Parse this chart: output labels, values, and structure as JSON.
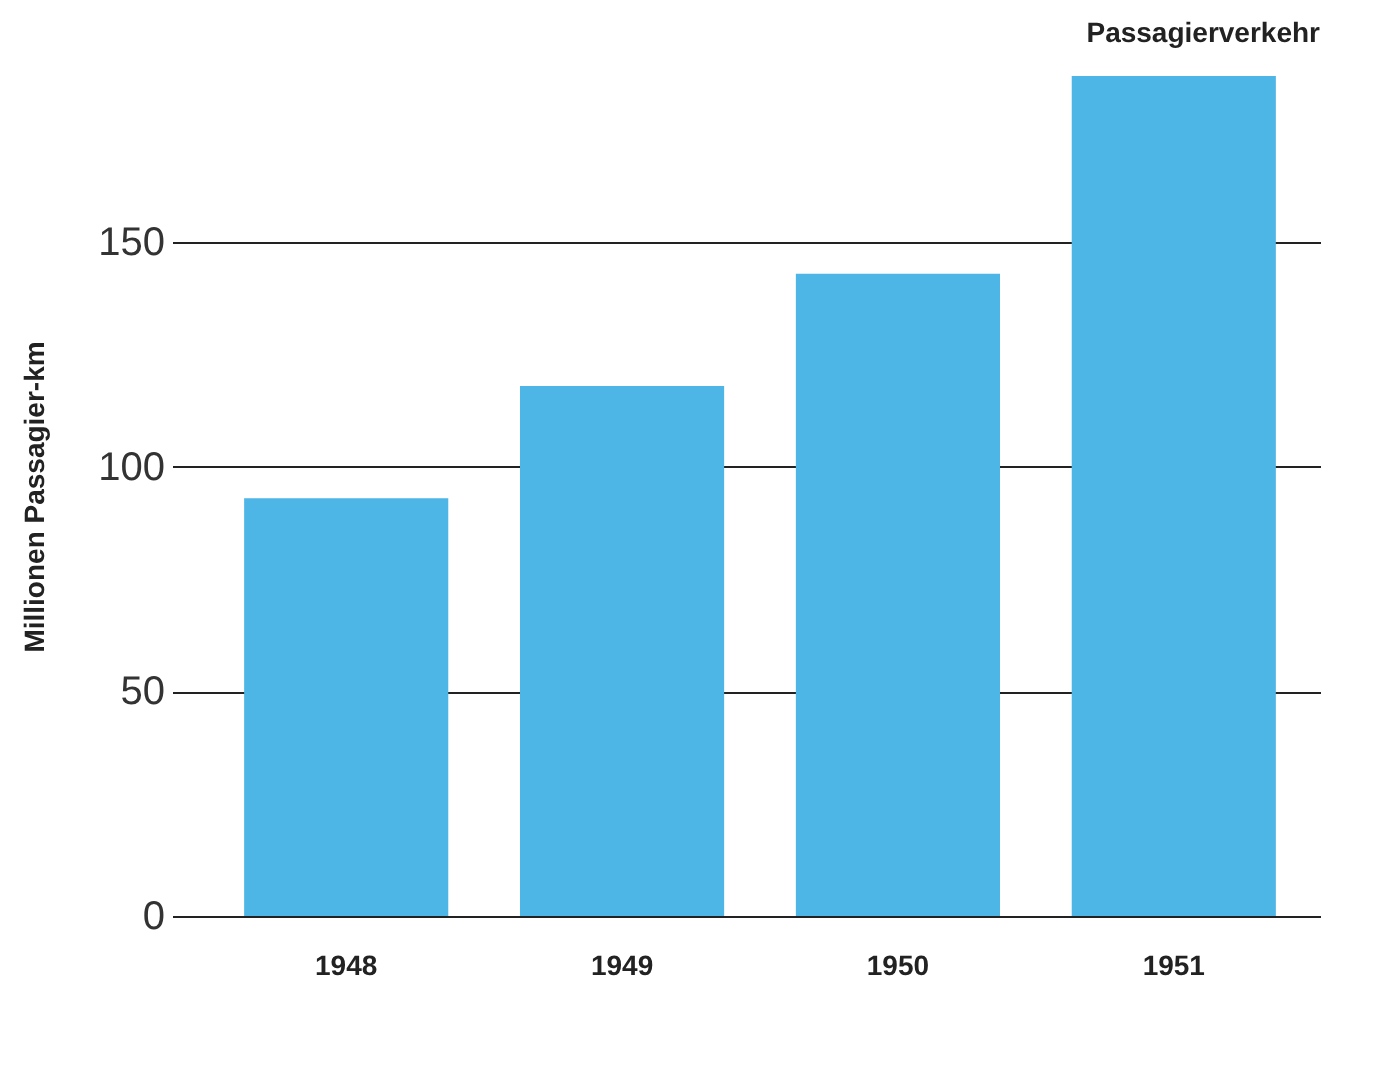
{
  "chart_data": {
    "type": "bar",
    "title": "Passagierverkehr",
    "ylabel": "Millionen Passagier-km",
    "categories": [
      "1948",
      "1949",
      "1950",
      "1951"
    ],
    "values": [
      93,
      118,
      143,
      187
    ],
    "color": "#4db6e6",
    "ylim": [
      0,
      187
    ],
    "yticks": [
      0,
      50,
      100,
      150
    ],
    "grid": "y"
  }
}
